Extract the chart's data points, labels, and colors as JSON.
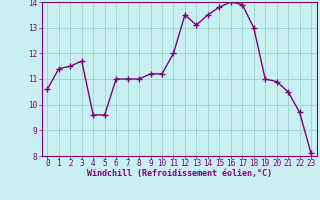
{
  "x": [
    0,
    1,
    2,
    3,
    4,
    5,
    6,
    7,
    8,
    9,
    10,
    11,
    12,
    13,
    14,
    15,
    16,
    17,
    18,
    19,
    20,
    21,
    22,
    23
  ],
  "y": [
    10.6,
    11.4,
    11.5,
    11.7,
    9.6,
    9.6,
    11.0,
    11.0,
    11.0,
    11.2,
    11.2,
    12.0,
    13.5,
    13.1,
    13.5,
    13.8,
    14.0,
    13.9,
    13.0,
    11.0,
    10.9,
    10.5,
    9.7,
    8.1
  ],
  "line_color": "#800080",
  "marker": "+",
  "marker_color": "#800080",
  "bg_color": "#c8f0f0",
  "grid_color": "#a0d8d0",
  "xlabel": "Windchill (Refroidissement éolien,°C)",
  "xlim": [
    -0.5,
    23.5
  ],
  "ylim": [
    8,
    14
  ],
  "yticks": [
    8,
    9,
    10,
    11,
    12,
    13,
    14
  ],
  "xticks": [
    0,
    1,
    2,
    3,
    4,
    5,
    6,
    7,
    8,
    9,
    10,
    11,
    12,
    13,
    14,
    15,
    16,
    17,
    18,
    19,
    20,
    21,
    22,
    23
  ],
  "font_color": "#800080",
  "axis_color": "#800080",
  "marker_size": 4,
  "line_width": 1.0,
  "tick_fontsize": 5.5,
  "xlabel_fontsize": 6.0
}
